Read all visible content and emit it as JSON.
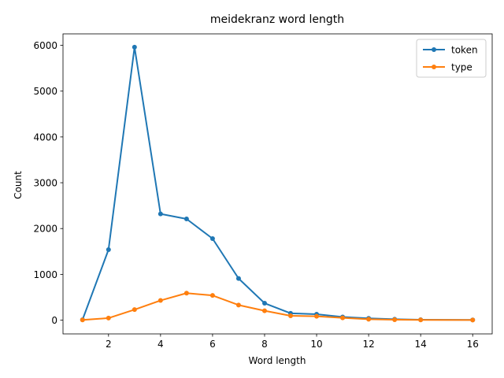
{
  "chart_data": {
    "type": "line",
    "title": "meidekranz word length",
    "xlabel": "Word length",
    "ylabel": "Count",
    "xlim": [
      0.25,
      16.75
    ],
    "ylim": [
      -300,
      6250
    ],
    "xticks": [
      2,
      4,
      6,
      8,
      10,
      12,
      14,
      16
    ],
    "yticks": [
      0,
      1000,
      2000,
      3000,
      4000,
      5000,
      6000
    ],
    "grid": false,
    "legend_position": "top-right",
    "series": [
      {
        "name": "token",
        "color": "#1f77b4",
        "x": [
          1,
          2,
          3,
          4,
          5,
          6,
          7,
          8,
          9,
          10,
          11,
          12,
          13,
          14,
          16
        ],
        "y": [
          10,
          1540,
          5960,
          2320,
          2210,
          1780,
          910,
          370,
          150,
          130,
          70,
          40,
          20,
          10,
          5
        ]
      },
      {
        "name": "type",
        "color": "#ff7f0e",
        "x": [
          1,
          2,
          3,
          4,
          5,
          6,
          7,
          8,
          9,
          10,
          11,
          12,
          13,
          14,
          16
        ],
        "y": [
          5,
          45,
          230,
          430,
          590,
          540,
          330,
          205,
          95,
          85,
          50,
          20,
          10,
          5,
          3
        ]
      }
    ]
  }
}
